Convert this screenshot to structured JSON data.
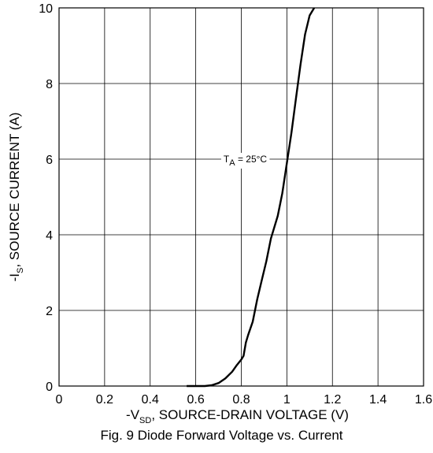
{
  "chart_data": {
    "type": "line",
    "caption": "Fig. 9 Diode Forward Voltage vs. Current",
    "xlabel": {
      "prefix": "-V",
      "sub": "SD",
      "suffix": ", SOURCE-DRAIN VOLTAGE (V)"
    },
    "ylabel": {
      "prefix": "-I",
      "sub": "S",
      "suffix": ", SOURCE CURRENT (A)"
    },
    "xlim": [
      0,
      1.6
    ],
    "ylim": [
      0,
      10
    ],
    "xticks": [
      0,
      0.2,
      0.4,
      0.6,
      0.8,
      1,
      1.2,
      1.4,
      1.6
    ],
    "xtick_labels": [
      "0",
      "0.2",
      "0.4",
      "0.6",
      "0.8",
      "1",
      "1.2",
      "1.4",
      "1.6"
    ],
    "yticks": [
      0,
      2,
      4,
      6,
      8,
      10
    ],
    "ytick_labels": [
      "0",
      "2",
      "4",
      "6",
      "8",
      "10"
    ],
    "grid": true,
    "annotation": {
      "prefix": "T",
      "sub": "A",
      "suffix": " = 25°C",
      "x": 0.93,
      "y": 6.0
    },
    "series": [
      {
        "x": [
          0.56,
          0.6,
          0.64,
          0.67,
          0.7,
          0.73,
          0.76,
          0.78,
          0.8,
          0.81,
          0.82,
          0.83,
          0.85,
          0.87,
          0.89,
          0.91,
          0.93,
          0.96,
          0.98,
          1.0,
          1.02,
          1.04,
          1.06,
          1.08,
          1.1,
          1.12
        ],
        "y": [
          0.0,
          0.0,
          0.0,
          0.02,
          0.08,
          0.2,
          0.38,
          0.55,
          0.7,
          0.8,
          1.15,
          1.35,
          1.7,
          2.3,
          2.8,
          3.3,
          3.9,
          4.5,
          5.1,
          5.9,
          6.7,
          7.6,
          8.5,
          9.3,
          9.8,
          10.0
        ],
        "color": "#000000"
      }
    ]
  }
}
